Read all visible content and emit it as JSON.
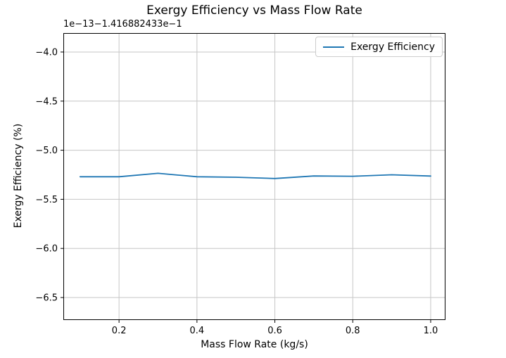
{
  "figure": {
    "title": "Exergy Efficiency vs Mass Flow Rate",
    "offset_text": "1e−13−1.416882433e−1",
    "xlabel": "Mass Flow Rate (kg/s)",
    "ylabel": "Exergy Efficiency (%)",
    "legend_label": "Exergy Efficiency"
  },
  "chart_data": {
    "type": "line",
    "title": "Exergy Efficiency vs Mass Flow Rate",
    "xlabel": "Mass Flow Rate (kg/s)",
    "ylabel": "Exergy Efficiency (%)",
    "grid": true,
    "legend_position": "upper right",
    "y_axis_scale_text": "1e−13",
    "y_axis_offset_text": "−1.416882433e−1",
    "y_offset": -0.1416882433,
    "y_scale": 1e-13,
    "xticks": [
      0.2,
      0.4,
      0.6,
      0.8,
      1.0
    ],
    "yticks": [
      -4.0,
      -4.5,
      -5.0,
      -5.5,
      -6.0,
      -6.5
    ],
    "xlim": [
      0.057,
      1.038
    ],
    "ylim": [
      -6.729,
      -3.807
    ],
    "grid_color": "#c6c6c6",
    "frame_color": "#000000",
    "tick_color": "#000000",
    "text_color": "#000000",
    "series": [
      {
        "name": "Exergy Efficiency",
        "color": "#1f77b4",
        "x": [
          0.1,
          0.2,
          0.3,
          0.4,
          0.5,
          0.6,
          0.7,
          0.8,
          0.9,
          1.0
        ],
        "y": [
          -5.27,
          -5.27,
          -5.235,
          -5.27,
          -5.275,
          -5.288,
          -5.262,
          -5.265,
          -5.25,
          -5.263
        ]
      }
    ]
  }
}
